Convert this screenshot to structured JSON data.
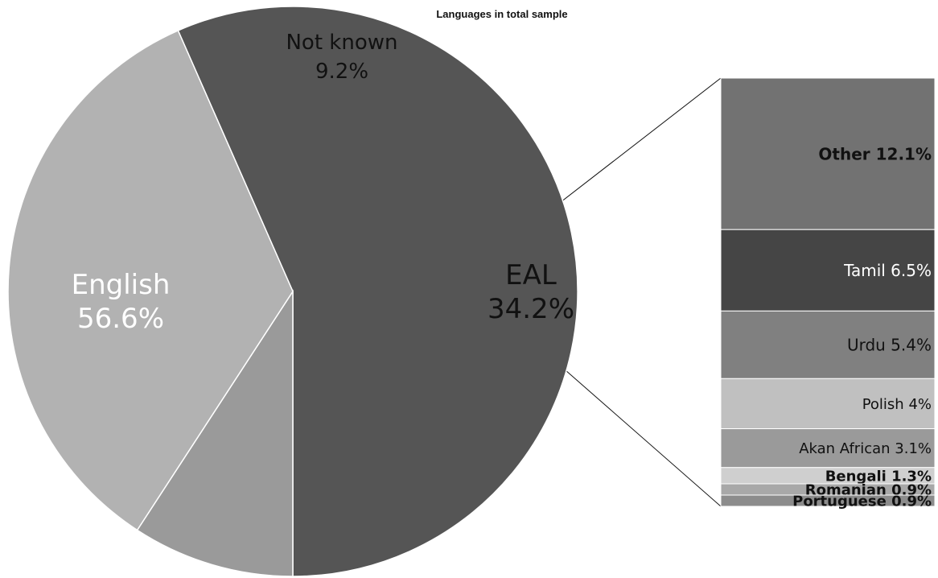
{
  "chart_data": {
    "type": "bar-of-pie",
    "title": "Languages in total sample",
    "pie": {
      "slices": [
        {
          "label": "English",
          "value": 56.6,
          "value_label": "56.6%",
          "color": "#555555",
          "text_color": "#ffffff"
        },
        {
          "label": "Not known",
          "value": 9.2,
          "value_label": "9.2%",
          "color": "#9a9a9a",
          "text_color": "#111111"
        },
        {
          "label": "EAL",
          "value": 34.2,
          "value_label": "34.2%",
          "color": "#b2b2b2",
          "text_color": "#111111"
        }
      ]
    },
    "breakdown": {
      "parent": "EAL",
      "segments": [
        {
          "label": "Other 12.1%",
          "value": 12.1,
          "color": "#727272",
          "text_color": "#111111",
          "bold": true
        },
        {
          "label": "Tamil 6.5%",
          "value": 6.5,
          "color": "#454545",
          "text_color": "#ffffff",
          "bold": false
        },
        {
          "label": "Urdu 5.4%",
          "value": 5.4,
          "color": "#808080",
          "text_color": "#111111",
          "bold": false
        },
        {
          "label": "Polish 4%",
          "value": 4.0,
          "color": "#c0c0c0",
          "text_color": "#111111",
          "bold": false
        },
        {
          "label": "Akan African 3.1%",
          "value": 3.1,
          "color": "#9a9a9a",
          "text_color": "#111111",
          "bold": false
        },
        {
          "label": "Bengali 1.3%",
          "value": 1.3,
          "color": "#cfcfcf",
          "text_color": "#111111",
          "bold": true
        },
        {
          "label": "Romanian 0.9%",
          "value": 0.9,
          "color": "#a8a8a8",
          "text_color": "#111111",
          "bold": true
        },
        {
          "label": "Portuguese 0.9%",
          "value": 0.9,
          "color": "#8c8c8c",
          "text_color": "#111111",
          "bold": true
        }
      ]
    }
  }
}
